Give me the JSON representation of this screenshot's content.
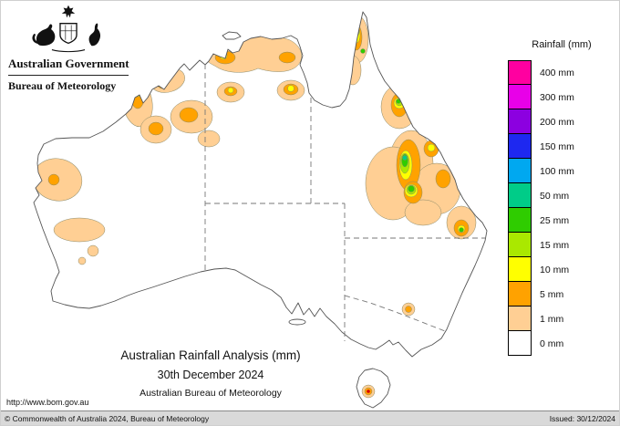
{
  "header": {
    "government": "Australian Government",
    "agency": "Bureau of Meteorology"
  },
  "legend": {
    "title": "Rainfall (mm)",
    "entries": [
      {
        "label": "400 mm",
        "value": 400,
        "color": "#FF00A0"
      },
      {
        "label": "300 mm",
        "value": 300,
        "color": "#E800E8"
      },
      {
        "label": "200 mm",
        "value": 200,
        "color": "#8C00E0"
      },
      {
        "label": "150 mm",
        "value": 150,
        "color": "#1E28F0"
      },
      {
        "label": "100 mm",
        "value": 100,
        "color": "#00A8F0"
      },
      {
        "label": "50 mm",
        "value": 50,
        "color": "#00CC88"
      },
      {
        "label": "25 mm",
        "value": 25,
        "color": "#2FCC00"
      },
      {
        "label": "15 mm",
        "value": 15,
        "color": "#AAE800"
      },
      {
        "label": "10 mm",
        "value": 10,
        "color": "#FFFF00"
      },
      {
        "label": "5 mm",
        "value": 5,
        "color": "#FFA200"
      },
      {
        "label": "1 mm",
        "value": 1,
        "color": "#FFCF94"
      },
      {
        "label": "0 mm",
        "value": 0,
        "color": "#FFFFFF"
      }
    ]
  },
  "caption": {
    "title": "Australian Rainfall Analysis (mm)",
    "date": "30th December 2024",
    "agency": "Australian Bureau of Meteorology"
  },
  "url": "http://www.bom.gov.au",
  "footer": {
    "copyright": "© Commonwealth of Australia 2024, Bureau of Meteorology",
    "issued": "Issued: 30/12/2024"
  },
  "map": {
    "region": "Australia",
    "extreme_spot_color": "#D40000",
    "coastline_color": "#555555",
    "state_border_style": "dashed"
  }
}
